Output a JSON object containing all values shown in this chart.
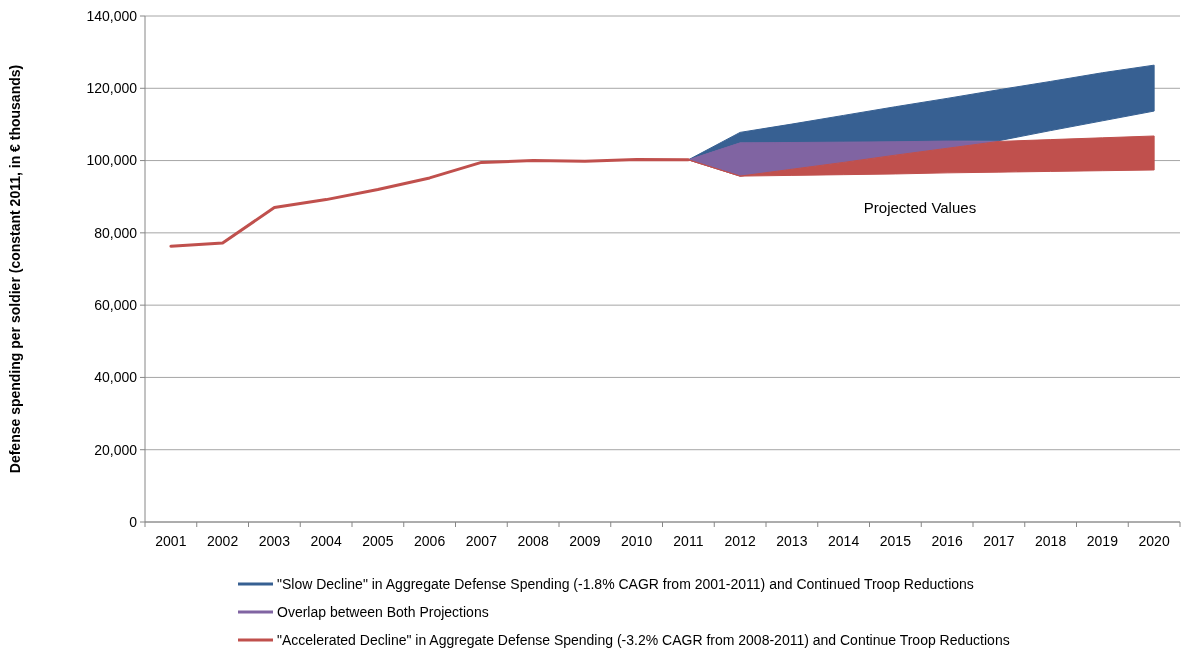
{
  "chart_data": {
    "type": "line",
    "ylabel": "Defense spending per soldier (constant 2011, in € thousands)",
    "categories": [
      "2001",
      "2002",
      "2003",
      "2004",
      "2005",
      "2006",
      "2007",
      "2008",
      "2009",
      "2010",
      "2011",
      "2012",
      "2013",
      "2014",
      "2015",
      "2016",
      "2017",
      "2018",
      "2019",
      "2020"
    ],
    "ylim": [
      0,
      140000
    ],
    "yticks": [
      {
        "value": 0,
        "label": "0"
      },
      {
        "value": 20000,
        "label": "20,000"
      },
      {
        "value": 40000,
        "label": "40,000"
      },
      {
        "value": 60000,
        "label": "60,000"
      },
      {
        "value": 80000,
        "label": "80,000"
      },
      {
        "value": 100000,
        "label": "100,000"
      },
      {
        "value": 120000,
        "label": "120,000"
      },
      {
        "value": 140000,
        "label": "140,000"
      }
    ],
    "grid": "y",
    "legend": "bottom",
    "marker": "none",
    "annotations": [
      "Projected Values"
    ],
    "series": [
      {
        "name": "\"Slow Decline\" in Aggregate Defense Spending (-1.8% CAGR from 2001-2011) and Continued Troop Reductions",
        "color": "#376092",
        "values": [
          null,
          null,
          null,
          null,
          null,
          null,
          null,
          null,
          null,
          null,
          null,
          null,
          null,
          null,
          null,
          null,
          null,
          null,
          null,
          null
        ],
        "lower": [
          null,
          null,
          null,
          null,
          null,
          null,
          null,
          null,
          null,
          null,
          100200,
          104900,
          105000,
          105100,
          105200,
          105400,
          105500,
          108300,
          111000,
          113700
        ],
        "upper": [
          null,
          null,
          null,
          null,
          null,
          null,
          null,
          null,
          null,
          null,
          100200,
          107800,
          110100,
          112500,
          114900,
          117200,
          119600,
          121900,
          124300,
          126400
        ]
      },
      {
        "name": "Overlap between Both Projections",
        "color": "#8064a2",
        "values": [
          null,
          null,
          null,
          null,
          null,
          null,
          null,
          null,
          null,
          null,
          null,
          null,
          null,
          null,
          null,
          null,
          null,
          null,
          null,
          null
        ],
        "lower": [
          null,
          null,
          null,
          null,
          null,
          null,
          null,
          null,
          null,
          null,
          100200,
          95700,
          97600,
          99500,
          101500,
          103400,
          105300,
          null,
          null,
          null
        ],
        "upper": [
          null,
          null,
          null,
          null,
          null,
          null,
          null,
          null,
          null,
          null,
          100200,
          104900,
          105000,
          105100,
          105200,
          105400,
          105300,
          null,
          null,
          null
        ]
      },
      {
        "name": "\"Accelerated Decline\" in Aggregate Defense Spending (-3.2% CAGR from 2008-2011) and Continue Troop Reductions",
        "color": "#c0504d",
        "values": [
          76300,
          77200,
          87000,
          89200,
          92000,
          95200,
          99500,
          100000,
          99800,
          100300,
          100200,
          null,
          null,
          null,
          null,
          null,
          null,
          null,
          null,
          null
        ],
        "lower": [
          null,
          null,
          null,
          null,
          null,
          null,
          null,
          null,
          null,
          null,
          100200,
          95700,
          95900,
          96100,
          96300,
          96600,
          96800,
          97000,
          97200,
          97400
        ],
        "upper": [
          null,
          null,
          null,
          null,
          null,
          null,
          null,
          null,
          null,
          null,
          100200,
          95700,
          97600,
          99500,
          101500,
          103400,
          105300,
          105800,
          106300,
          106800
        ]
      }
    ]
  }
}
